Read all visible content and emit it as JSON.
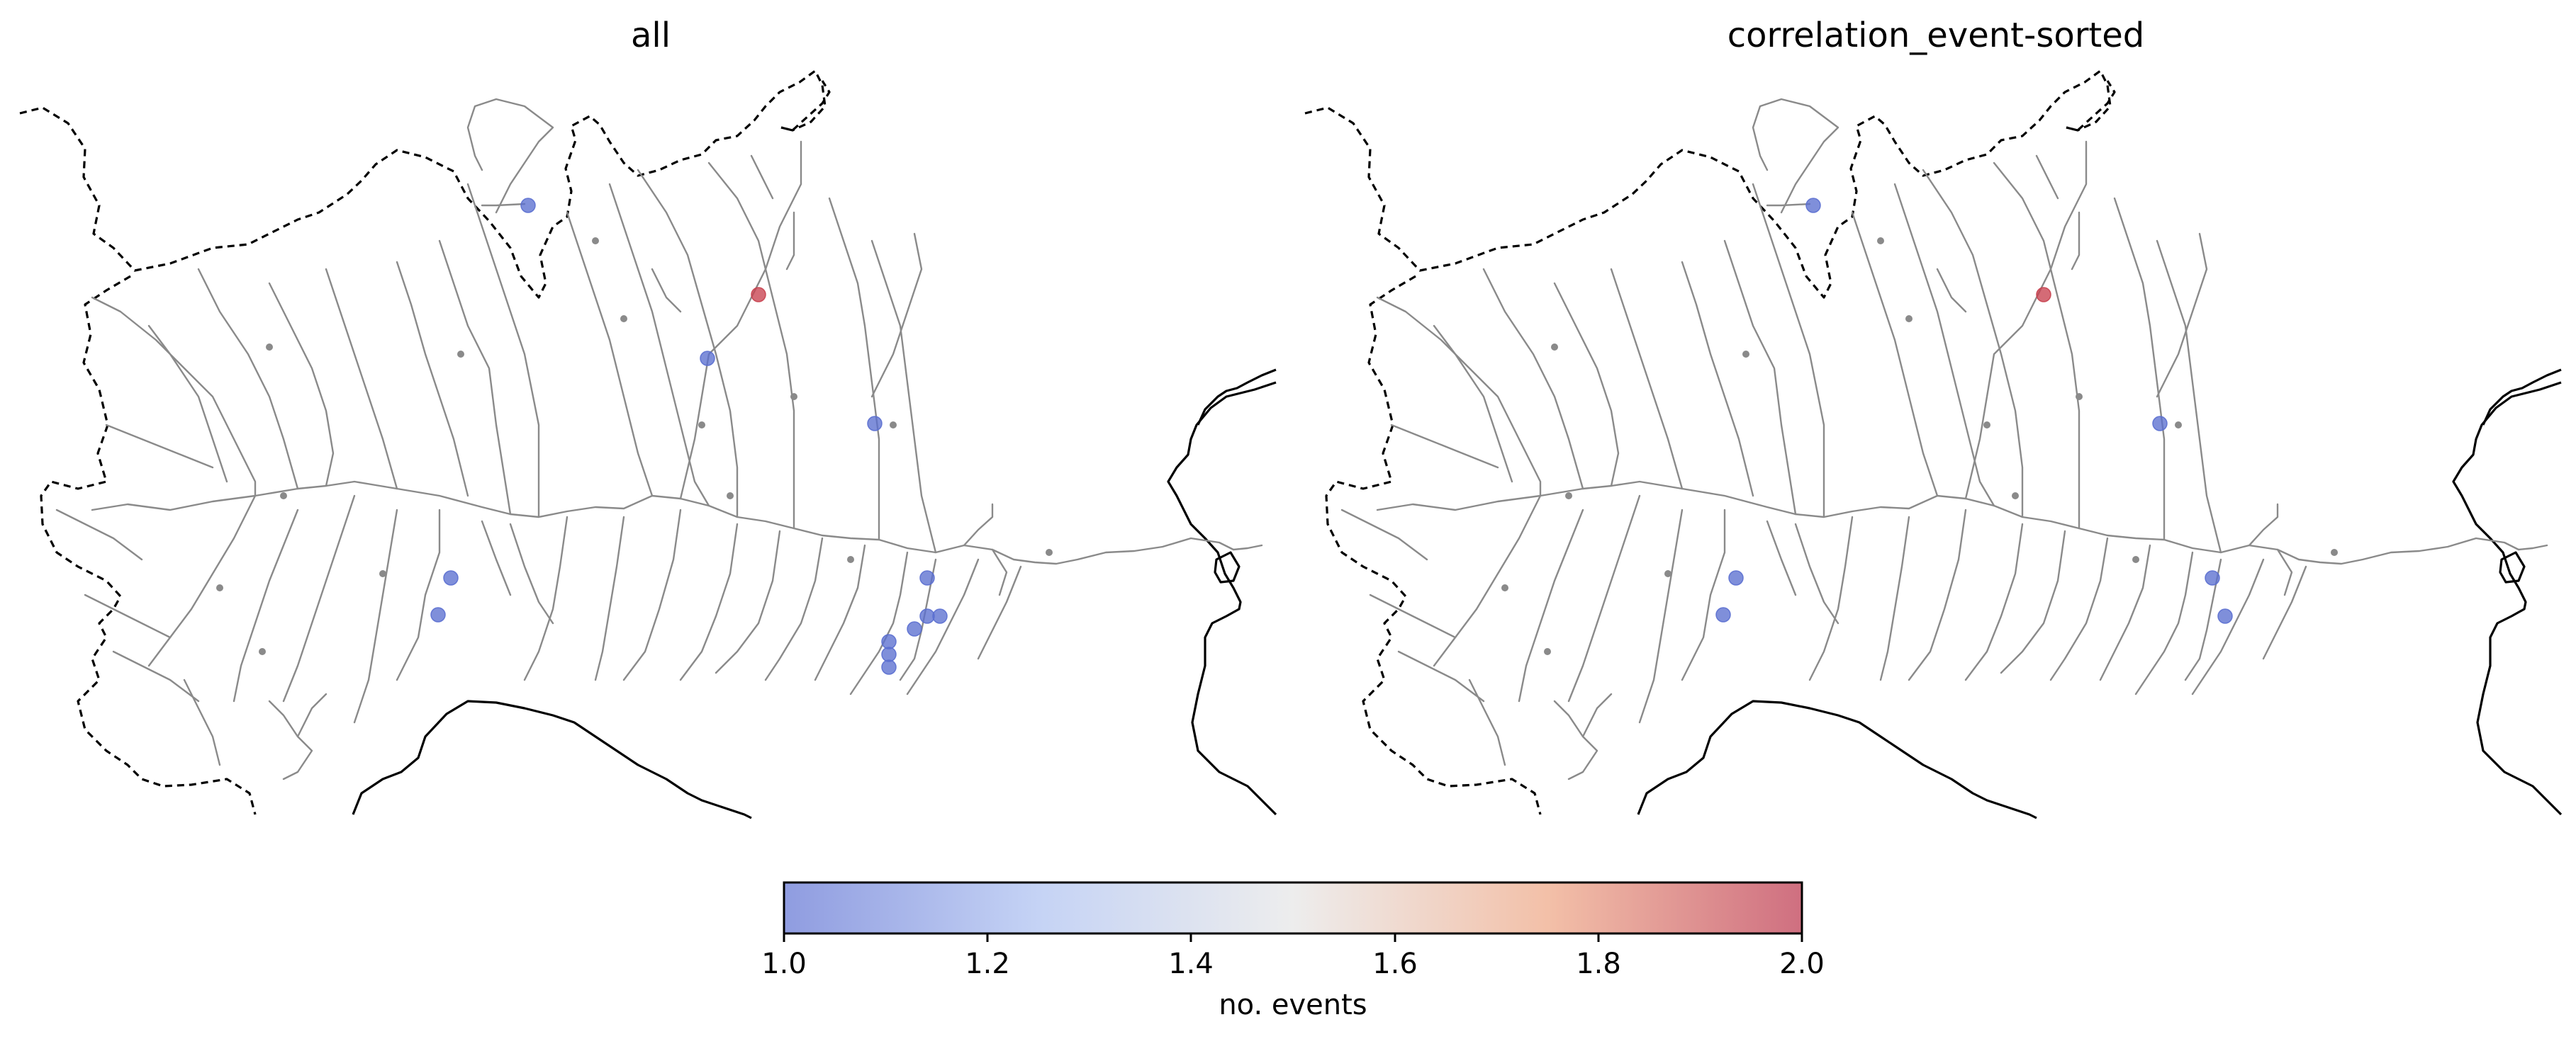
{
  "panels": [
    {
      "title": "all",
      "stations": [
        {
          "id": "s1",
          "events": 1
        },
        {
          "id": "s2",
          "events": 2
        },
        {
          "id": "s3",
          "events": 1
        },
        {
          "id": "s4",
          "events": 1
        },
        {
          "id": "s5",
          "events": 1
        },
        {
          "id": "s6",
          "events": 1
        },
        {
          "id": "s7",
          "events": 1
        },
        {
          "id": "s8",
          "events": 1
        },
        {
          "id": "s9",
          "events": 1
        },
        {
          "id": "s10",
          "events": 1
        },
        {
          "id": "s11",
          "events": 1
        },
        {
          "id": "s12",
          "events": 1
        },
        {
          "id": "s13",
          "events": 1
        }
      ]
    },
    {
      "title": "correlation_event-sorted",
      "stations": [
        {
          "id": "s1",
          "events": 1
        },
        {
          "id": "s2",
          "events": 2
        },
        {
          "id": "s4",
          "events": 1
        },
        {
          "id": "s5",
          "events": 1
        },
        {
          "id": "s6",
          "events": 1
        },
        {
          "id": "s7",
          "events": 1
        },
        {
          "id": "s9",
          "events": 1
        }
      ]
    }
  ],
  "colorbar": {
    "label": "no. events",
    "min": 1.0,
    "max": 2.0,
    "ticks": [
      "1.0",
      "1.2",
      "1.4",
      "1.6",
      "1.8",
      "2.0"
    ],
    "colormap": "coolwarm",
    "colors": {
      "low": "#8f9ce0",
      "mid": "#ededed",
      "high": "#cf6f80"
    }
  },
  "map_style": {
    "river_color": "#8a8a8a",
    "border_style": "dashed",
    "coast_color": "#000000",
    "marker_low_color": "#5b6fd0",
    "marker_high_color": "#c8414f"
  }
}
